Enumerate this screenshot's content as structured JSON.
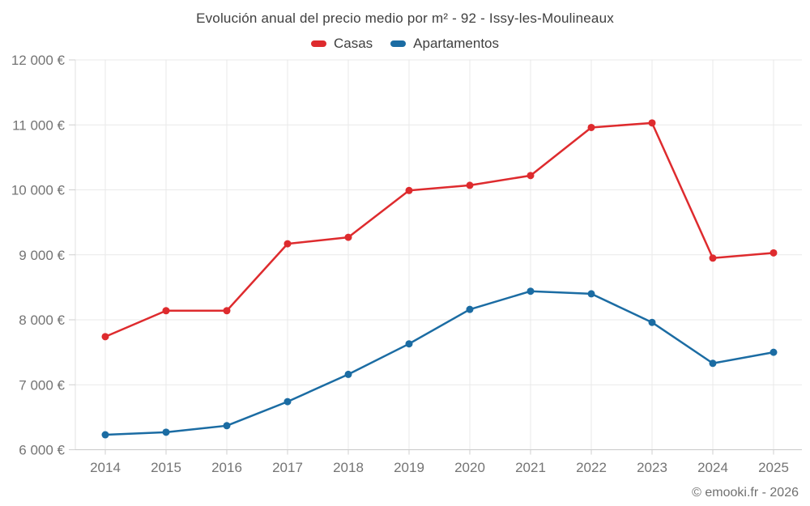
{
  "chart": {
    "title": "Evolución anual del precio medio por m² - 92 - Issy-les-Moulineaux",
    "watermark": "© emooki.fr - 2026"
  },
  "chart_data": {
    "type": "line",
    "title": "Evolución anual del precio medio por m² - 92 - Issy-les-Moulineaux",
    "categories": [
      "2014",
      "2015",
      "2016",
      "2017",
      "2018",
      "2019",
      "2020",
      "2021",
      "2022",
      "2023",
      "2024",
      "2025"
    ],
    "series": [
      {
        "name": "Casas",
        "color": "#de2b2e",
        "values": [
          7740,
          8140,
          8140,
          9170,
          9270,
          9990,
          10070,
          10220,
          10960,
          11030,
          8950,
          9030
        ]
      },
      {
        "name": "Apartamentos",
        "color": "#1b6ca3",
        "values": [
          6230,
          6270,
          6370,
          6740,
          7160,
          7630,
          8160,
          8440,
          8400,
          7960,
          7330,
          7500
        ]
      }
    ],
    "xlabel": "",
    "ylabel": "",
    "ylim": [
      6000,
      12000
    ],
    "ytick_step": 1000,
    "ytick_labels": [
      "6 000 €",
      "7 000 €",
      "8 000 €",
      "9 000 €",
      "10 000 €",
      "11 000 €",
      "12 000 €"
    ],
    "grid": true,
    "legend_position": "top"
  },
  "colors": {
    "background": "#ffffff",
    "grid": "#e9e9e9",
    "axis": "#c9c9c9",
    "tick": "#cfcfcf",
    "axis_label": "#747474",
    "title_text": "#3f3f3f",
    "watermark_text": "#707070",
    "series_casas": "#de2b2e",
    "series_apartamentos": "#1b6ca3"
  }
}
